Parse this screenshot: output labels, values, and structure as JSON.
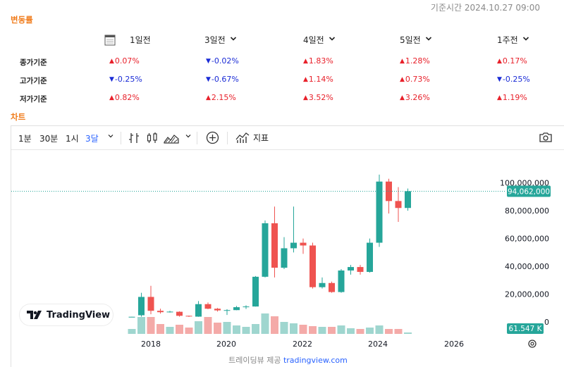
{
  "timestamp": "기준시간 2024.10.27 09:00",
  "section_variation": "변동률",
  "section_chart": "차트",
  "headers": [
    {
      "label": "1일전",
      "has_caret": false
    },
    {
      "label": "3일전",
      "has_caret": true
    },
    {
      "label": "4일전",
      "has_caret": true
    },
    {
      "label": "5일전",
      "has_caret": true
    },
    {
      "label": "1주전",
      "has_caret": true
    }
  ],
  "rows": [
    {
      "label": "종가기준",
      "values": [
        {
          "dir": "up",
          "text": "0.07%"
        },
        {
          "dir": "down",
          "text": "-0.02%"
        },
        {
          "dir": "up",
          "text": "1.83%"
        },
        {
          "dir": "up",
          "text": "1.28%"
        },
        {
          "dir": "up",
          "text": "0.17%"
        }
      ]
    },
    {
      "label": "고가기준",
      "values": [
        {
          "dir": "down",
          "text": "-0.25%"
        },
        {
          "dir": "down",
          "text": "-0.67%"
        },
        {
          "dir": "up",
          "text": "1.14%"
        },
        {
          "dir": "up",
          "text": "0.73%"
        },
        {
          "dir": "down",
          "text": "-0.25%"
        }
      ]
    },
    {
      "label": "저가기준",
      "values": [
        {
          "dir": "up",
          "text": "0.82%"
        },
        {
          "dir": "up",
          "text": "2.15%"
        },
        {
          "dir": "up",
          "text": "3.52%"
        },
        {
          "dir": "up",
          "text": "3.26%"
        },
        {
          "dir": "up",
          "text": "1.19%"
        }
      ]
    }
  ],
  "toolbar": {
    "intervals": [
      "1분",
      "30분",
      "1시",
      "3달"
    ],
    "active_interval": "3달",
    "indicators_label": "지표",
    "icons": [
      "chevron-down-icon",
      "bar-style-icon",
      "candle-style-icon",
      "area-style-icon",
      "plus-circle-icon",
      "indicators-icon",
      "camera-icon"
    ]
  },
  "credit": {
    "prefix": "트레이딩뷰 제공",
    "link": "tradingview.com"
  },
  "brand": "TradingView",
  "colors": {
    "up": "#26a69a",
    "down": "#ef5350",
    "vol_up": "#9fd6cf",
    "vol_down": "#f4aaa8",
    "accent": "#2962ff",
    "section_title": "#f07c1c",
    "change_up": "#e8202a",
    "change_down": "#1a2bd6"
  },
  "chart_data": {
    "type": "candlestick",
    "price_axis_labels": [
      "100,000,000",
      "80,000,000",
      "60,000,000",
      "40,000,000",
      "20,000,000",
      "0"
    ],
    "time_axis_labels": [
      "2018",
      "2020",
      "2022",
      "2024",
      "2026"
    ],
    "last_price_label": "94,062,000",
    "last_price": 94062000,
    "last_volume_label": "61.547 K",
    "ylim": [
      0,
      110000000
    ],
    "candles": [
      {
        "o": 3600000,
        "h": 3700000,
        "l": 3500000,
        "c": 3700000,
        "v": 0.7
      },
      {
        "o": 4800000,
        "h": 21000000,
        "l": 3800000,
        "c": 18000000,
        "v": 2.4
      },
      {
        "o": 18000000,
        "h": 26000000,
        "l": 5500000,
        "c": 8000000,
        "v": 2.4
      },
      {
        "o": 8000000,
        "h": 9500000,
        "l": 6000000,
        "c": 7000000,
        "v": 1.4
      },
      {
        "o": 7000000,
        "h": 8000000,
        "l": 6700000,
        "c": 7400000,
        "v": 1.0
      },
      {
        "o": 7300000,
        "h": 7600000,
        "l": 3800000,
        "c": 4400000,
        "v": 1.3
      },
      {
        "o": 4400000,
        "h": 4500000,
        "l": 3600000,
        "c": 3900000,
        "v": 0.9
      },
      {
        "o": 3800000,
        "h": 15000000,
        "l": 3700000,
        "c": 12800000,
        "v": 1.8
      },
      {
        "o": 12800000,
        "h": 14000000,
        "l": 9200000,
        "c": 9500000,
        "v": 2.4
      },
      {
        "o": 9500000,
        "h": 10000000,
        "l": 7500000,
        "c": 8300000,
        "v": 1.6
      },
      {
        "o": 8300000,
        "h": 9200000,
        "l": 5000000,
        "c": 8500000,
        "v": 1.7
      },
      {
        "o": 8500000,
        "h": 11500000,
        "l": 8400000,
        "c": 10600000,
        "v": 1.2
      },
      {
        "o": 10600000,
        "h": 12000000,
        "l": 9300000,
        "c": 11100000,
        "v": 1.0
      },
      {
        "o": 11100000,
        "h": 33000000,
        "l": 11000000,
        "c": 32500000,
        "v": 1.4
      },
      {
        "o": 32500000,
        "h": 73000000,
        "l": 32000000,
        "c": 71000000,
        "v": 2.9
      },
      {
        "o": 71000000,
        "h": 83000000,
        "l": 32000000,
        "c": 39000000,
        "v": 2.5
      },
      {
        "o": 39000000,
        "h": 61000000,
        "l": 38000000,
        "c": 53000000,
        "v": 1.7
      },
      {
        "o": 53000000,
        "h": 83000000,
        "l": 50000000,
        "c": 57000000,
        "v": 1.5
      },
      {
        "o": 57000000,
        "h": 60000000,
        "l": 49000000,
        "c": 55000000,
        "v": 1.3
      },
      {
        "o": 55000000,
        "h": 57000000,
        "l": 24000000,
        "c": 25000000,
        "v": 1.1
      },
      {
        "o": 25000000,
        "h": 32000000,
        "l": 24000000,
        "c": 28000000,
        "v": 1.0
      },
      {
        "o": 28000000,
        "h": 29000000,
        "l": 21000000,
        "c": 21500000,
        "v": 1.0
      },
      {
        "o": 21500000,
        "h": 38000000,
        "l": 21000000,
        "c": 37000000,
        "v": 1.2
      },
      {
        "o": 37000000,
        "h": 41000000,
        "l": 34000000,
        "c": 39500000,
        "v": 0.8
      },
      {
        "o": 39500000,
        "h": 41000000,
        "l": 34000000,
        "c": 36000000,
        "v": 0.7
      },
      {
        "o": 36000000,
        "h": 60000000,
        "l": 35500000,
        "c": 57000000,
        "v": 0.9
      },
      {
        "o": 57000000,
        "h": 106000000,
        "l": 54000000,
        "c": 101000000,
        "v": 1.2
      },
      {
        "o": 101000000,
        "h": 103000000,
        "l": 78000000,
        "c": 87000000,
        "v": 0.7
      },
      {
        "o": 87000000,
        "h": 97000000,
        "l": 72000000,
        "c": 82000000,
        "v": 0.7
      },
      {
        "o": 82000000,
        "h": 96000000,
        "l": 80000000,
        "c": 94062000,
        "v": 0.2
      }
    ]
  }
}
